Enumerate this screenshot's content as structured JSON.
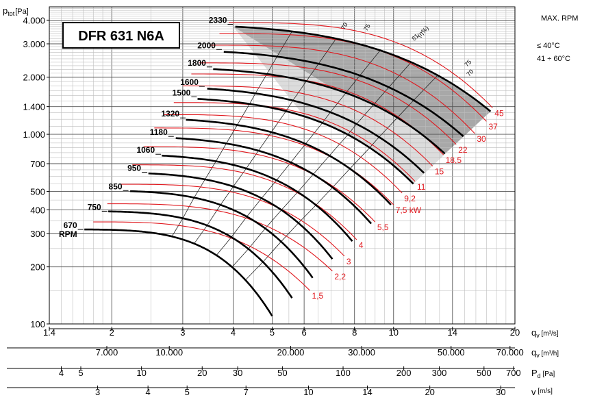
{
  "chart_data": {
    "type": "line",
    "title": "DFR 631 N6A",
    "ylabel": "p",
    "ylabel_sub": "tot",
    "ylabel_unit": "[Pa]",
    "x_scale": "log",
    "y_scale": "log",
    "xlim": [
      1.4,
      20
    ],
    "ylim": [
      100,
      4700
    ],
    "y_ticks": [
      {
        "v": 100,
        "label": "100"
      },
      {
        "v": 200,
        "label": "200"
      },
      {
        "v": 300,
        "label": "300"
      },
      {
        "v": 400,
        "label": "400"
      },
      {
        "v": 500,
        "label": "500"
      },
      {
        "v": 700,
        "label": "700"
      },
      {
        "v": 1000,
        "label": "1.000"
      },
      {
        "v": 1400,
        "label": "1.400"
      },
      {
        "v": 2000,
        "label": "2.000"
      },
      {
        "v": 3000,
        "label": "3.000"
      },
      {
        "v": 4000,
        "label": "4.000"
      }
    ],
    "axes": [
      {
        "label": "qv",
        "unit": "[m³/s]",
        "ticks": [
          {
            "v": 1.4,
            "label": "1.4"
          },
          {
            "v": 2,
            "label": "2"
          },
          {
            "v": 3,
            "label": "3"
          },
          {
            "v": 4,
            "label": "4"
          },
          {
            "v": 5,
            "label": "5"
          },
          {
            "v": 6,
            "label": "6"
          },
          {
            "v": 8,
            "label": "8"
          },
          {
            "v": 10,
            "label": "10"
          },
          {
            "v": 14,
            "label": "14"
          },
          {
            "v": 20,
            "label": "20"
          }
        ]
      },
      {
        "label": "qv",
        "unit": "[m³/h]",
        "ticks": [
          {
            "v": 7000,
            "label": "7.000"
          },
          {
            "v": 10000,
            "label": "10.000"
          },
          {
            "v": 20000,
            "label": "20.000"
          },
          {
            "v": 30000,
            "label": "30.000"
          },
          {
            "v": 50000,
            "label": "50.000"
          },
          {
            "v": 70000,
            "label": "70.000"
          }
        ]
      },
      {
        "label": "Pd",
        "unit": "[Pa]",
        "ticks": [
          {
            "v": 4,
            "label": "4"
          },
          {
            "v": 5,
            "label": "5"
          },
          {
            "v": 10,
            "label": "10"
          },
          {
            "v": 20,
            "label": "20"
          },
          {
            "v": 30,
            "label": "30"
          },
          {
            "v": 50,
            "label": "50"
          },
          {
            "v": 100,
            "label": "100"
          },
          {
            "v": 200,
            "label": "200"
          },
          {
            "v": 300,
            "label": "300"
          },
          {
            "v": 500,
            "label": "500"
          },
          {
            "v": 700,
            "label": "700"
          }
        ]
      },
      {
        "label": "v",
        "unit": "[m/s]",
        "ticks": [
          {
            "v": 3,
            "label": "3"
          },
          {
            "v": 4,
            "label": "4"
          },
          {
            "v": 5,
            "label": "5"
          },
          {
            "v": 7,
            "label": "7"
          },
          {
            "v": 10,
            "label": "10"
          },
          {
            "v": 14,
            "label": "14"
          },
          {
            "v": 20,
            "label": "20"
          },
          {
            "v": 30,
            "label": "30"
          }
        ]
      }
    ],
    "notes": {
      "max_rpm": "MAX. RPM",
      "temp1": "≤ 40°C",
      "temp2": "41 ÷ 60°C"
    },
    "series": [
      {
        "name": "670",
        "label2": "RPM",
        "p0": 315,
        "q_end": 5.0,
        "p_end": 110
      },
      {
        "name": "750",
        "p0": 393,
        "q_end": 5.6,
        "p_end": 137
      },
      {
        "name": "850",
        "p0": 505,
        "q_end": 6.3,
        "p_end": 175
      },
      {
        "name": "950",
        "p0": 630,
        "q_end": 7.05,
        "p_end": 220
      },
      {
        "name": "1060",
        "p0": 785,
        "q_end": 7.9,
        "p_end": 273
      },
      {
        "name": "1180",
        "p0": 975,
        "q_end": 8.8,
        "p_end": 338
      },
      {
        "name": "1320",
        "p0": 1220,
        "q_end": 9.85,
        "p_end": 425
      },
      {
        "name": "1500",
        "p0": 1575,
        "q_end": 11.2,
        "p_end": 548
      },
      {
        "name": "1600",
        "p0": 1790,
        "q_end": 11.9,
        "p_end": 625
      },
      {
        "name": "1800",
        "p0": 2265,
        "q_end": 13.4,
        "p_end": 790
      },
      {
        "name": "2000",
        "p0": 2800,
        "q_end": 14.9,
        "p_end": 975
      },
      {
        "name": "2330",
        "p0": 3800,
        "q_end": 17.4,
        "p_end": 1320
      }
    ],
    "power_lines": [
      {
        "label": "1,5",
        "q_start": 1.8,
        "p_start": 345,
        "q": 6.2,
        "p": 150
      },
      {
        "label": "2,2",
        "q_start": 1.95,
        "p_start": 430,
        "q": 7.05,
        "p": 190
      },
      {
        "label": "3",
        "q_start": 2.1,
        "p_start": 545,
        "q": 7.55,
        "p": 228
      },
      {
        "label": "4",
        "q_start": 2.25,
        "p_start": 690,
        "q": 8.1,
        "p": 278
      },
      {
        "label": "5,5",
        "q_start": 2.4,
        "p_start": 860,
        "q": 9.0,
        "p": 345
      },
      {
        "label": "7,5 kW",
        "q_start": 2.55,
        "p_start": 1080,
        "q": 10.0,
        "p": 425
      },
      {
        "label": "9,2",
        "q_start": 2.7,
        "p_start": 1270,
        "q": 10.5,
        "p": 490
      },
      {
        "label": "11",
        "q_start": 2.85,
        "p_start": 1470,
        "q": 11.3,
        "p": 565
      },
      {
        "label": "15",
        "q_start": 3.0,
        "p_start": 1800,
        "q": 12.5,
        "p": 680
      },
      {
        "label": "18,5",
        "q_start": 3.15,
        "p_start": 2080,
        "q": 13.3,
        "p": 780
      },
      {
        "label": "22",
        "q_start": 3.3,
        "p_start": 2380,
        "q": 14.3,
        "p": 885
      },
      {
        "label": "30",
        "q_start": 3.5,
        "p_start": 2950,
        "q": 15.9,
        "p": 1010
      },
      {
        "label": "37",
        "q_start": 3.7,
        "p_start": 3400,
        "q": 17.0,
        "p": 1170
      },
      {
        "label": "45",
        "q_start": 3.9,
        "p_start": 3880,
        "q": 17.6,
        "p": 1380
      }
    ],
    "efficiency_labels": [
      "70",
      "75",
      "81",
      "(η%)",
      "75",
      "70"
    ]
  }
}
